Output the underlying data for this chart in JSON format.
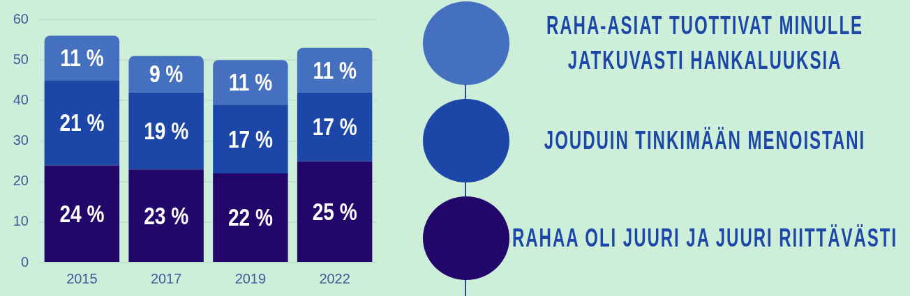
{
  "chart_data": {
    "type": "bar",
    "stacked": true,
    "categories": [
      "2015",
      "2017",
      "2019",
      "2022"
    ],
    "series": [
      {
        "name": "RAHAA OLI JUURI JA JUURI RIITTÄVÄSTI",
        "color": "#220669",
        "values": [
          24,
          23,
          22,
          25
        ],
        "value_labels": [
          "24 %",
          "23 %",
          "22 %",
          "25 %"
        ]
      },
      {
        "name": "JOUDUIN TINKIMÄÄN MENOISTANI",
        "color": "#1c47a8",
        "values": [
          21,
          19,
          17,
          17
        ],
        "value_labels": [
          "21 %",
          "19 %",
          "17 %",
          "17 %"
        ]
      },
      {
        "name": "RAHA-ASIAT TUOTTIVAT MINULLE JATKUVASTI HANKALUUKSIA",
        "color": "#4470bf",
        "values": [
          11,
          9,
          11,
          11
        ],
        "value_labels": [
          "11 %",
          "9 %",
          "11 %",
          "11 %"
        ]
      }
    ],
    "ylim": [
      0,
      60
    ],
    "yticks": [
      0,
      10,
      20,
      30,
      40,
      50,
      60
    ],
    "grid": "y",
    "legend": "right"
  }
}
